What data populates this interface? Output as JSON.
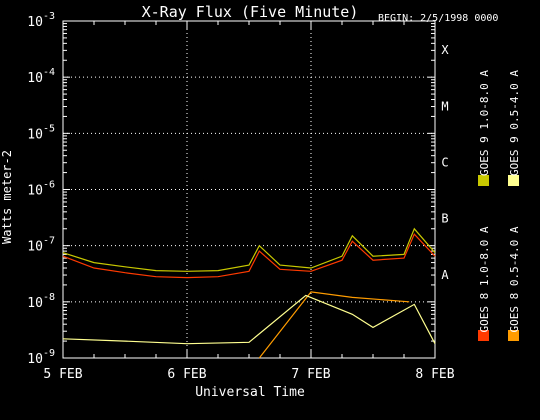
{
  "chart_data": {
    "type": "line",
    "title": "X-Ray Flux (Five Minute)",
    "begin_label": "BEGIN: 2/5/1998 0000",
    "xlabel": "Universal Time",
    "ylabel": "Watts meter-2",
    "y_scale": "log",
    "ylim": [
      1e-09,
      0.001
    ],
    "y_ticks": [
      {
        "base": "10",
        "exp": "-9",
        "value": 1e-09
      },
      {
        "base": "10",
        "exp": "-8",
        "value": 1e-08
      },
      {
        "base": "10",
        "exp": "-7",
        "value": 1e-07
      },
      {
        "base": "10",
        "exp": "-6",
        "value": 1e-06
      },
      {
        "base": "10",
        "exp": "-5",
        "value": 1e-05
      },
      {
        "base": "10",
        "exp": "-4",
        "value": 0.0001
      },
      {
        "base": "10",
        "exp": "-3",
        "value": 0.001
      }
    ],
    "xlim": [
      "1998-02-05T00:00",
      "1998-02-08T00:00"
    ],
    "x_ticks": [
      {
        "label": "5 FEB",
        "value": "1998-02-05T00:00"
      },
      {
        "label": "6 FEB",
        "value": "1998-02-06T00:00"
      },
      {
        "label": "7 FEB",
        "value": "1998-02-07T00:00"
      },
      {
        "label": "8 FEB",
        "value": "1998-02-08T00:00"
      }
    ],
    "flare_classes": [
      {
        "label": "A",
        "value": 1e-08
      },
      {
        "label": "B",
        "value": 1e-07
      },
      {
        "label": "C",
        "value": 1e-06
      },
      {
        "label": "M",
        "value": 1e-05
      },
      {
        "label": "X",
        "value": 0.0001
      }
    ],
    "grid": true,
    "legend_position": "right, rotated",
    "series": [
      {
        "name": "GOES 8 1.0-8.0 A",
        "color": "#ff3a00",
        "x": [
          "1998-02-05T00:00",
          "1998-02-05T06:00",
          "1998-02-05T12:00",
          "1998-02-05T18:00",
          "1998-02-06T00:00",
          "1998-02-06T06:00",
          "1998-02-06T12:00",
          "1998-02-06T14:00",
          "1998-02-06T18:00",
          "1998-02-07T00:00",
          "1998-02-07T06:00",
          "1998-02-07T08:00",
          "1998-02-07T12:00",
          "1998-02-07T18:00",
          "1998-02-07T20:00",
          "1998-02-08T00:00"
        ],
        "y": [
          6.5e-08,
          4e-08,
          3.3e-08,
          2.8e-08,
          2.7e-08,
          2.8e-08,
          3.5e-08,
          8e-08,
          3.8e-08,
          3.5e-08,
          5.5e-08,
          1.2e-07,
          5.5e-08,
          6e-08,
          1.6e-07,
          6.5e-08
        ]
      },
      {
        "name": "GOES 8 0.5-4.0 A",
        "color": "#ff9c00",
        "x": [
          "1998-02-06T14:00",
          "1998-02-07T00:00",
          "1998-02-07T08:00",
          "1998-02-07T19:00"
        ],
        "y": [
          1e-09,
          1.5e-08,
          1.2e-08,
          1e-08
        ]
      },
      {
        "name": "GOES 9 1.0-8.0 A",
        "color": "#c8c800",
        "x": [
          "1998-02-05T00:00",
          "1998-02-05T06:00",
          "1998-02-05T12:00",
          "1998-02-05T18:00",
          "1998-02-06T00:00",
          "1998-02-06T06:00",
          "1998-02-06T12:00",
          "1998-02-06T14:00",
          "1998-02-06T18:00",
          "1998-02-07T00:00",
          "1998-02-07T06:00",
          "1998-02-07T08:00",
          "1998-02-07T12:00",
          "1998-02-07T18:00",
          "1998-02-07T20:00",
          "1998-02-08T00:00"
        ],
        "y": [
          7.5e-08,
          5e-08,
          4.2e-08,
          3.6e-08,
          3.5e-08,
          3.6e-08,
          4.5e-08,
          1e-07,
          4.5e-08,
          4e-08,
          6.5e-08,
          1.5e-07,
          6.5e-08,
          7e-08,
          2e-07,
          7.5e-08
        ]
      },
      {
        "name": "GOES 9 0.5-4.0 A",
        "color": "#ffff90",
        "x": [
          "1998-02-05T00:00",
          "1998-02-05T12:00",
          "1998-02-06T00:00",
          "1998-02-06T12:00",
          "1998-02-06T23:00",
          "1998-02-07T08:00",
          "1998-02-07T12:00",
          "1998-02-07T20:00",
          "1998-02-08T00:00"
        ],
        "y": [
          2.2e-09,
          2e-09,
          1.8e-09,
          1.9e-09,
          1.3e-08,
          6e-09,
          3.5e-09,
          9e-09,
          1.8e-09
        ]
      }
    ]
  }
}
